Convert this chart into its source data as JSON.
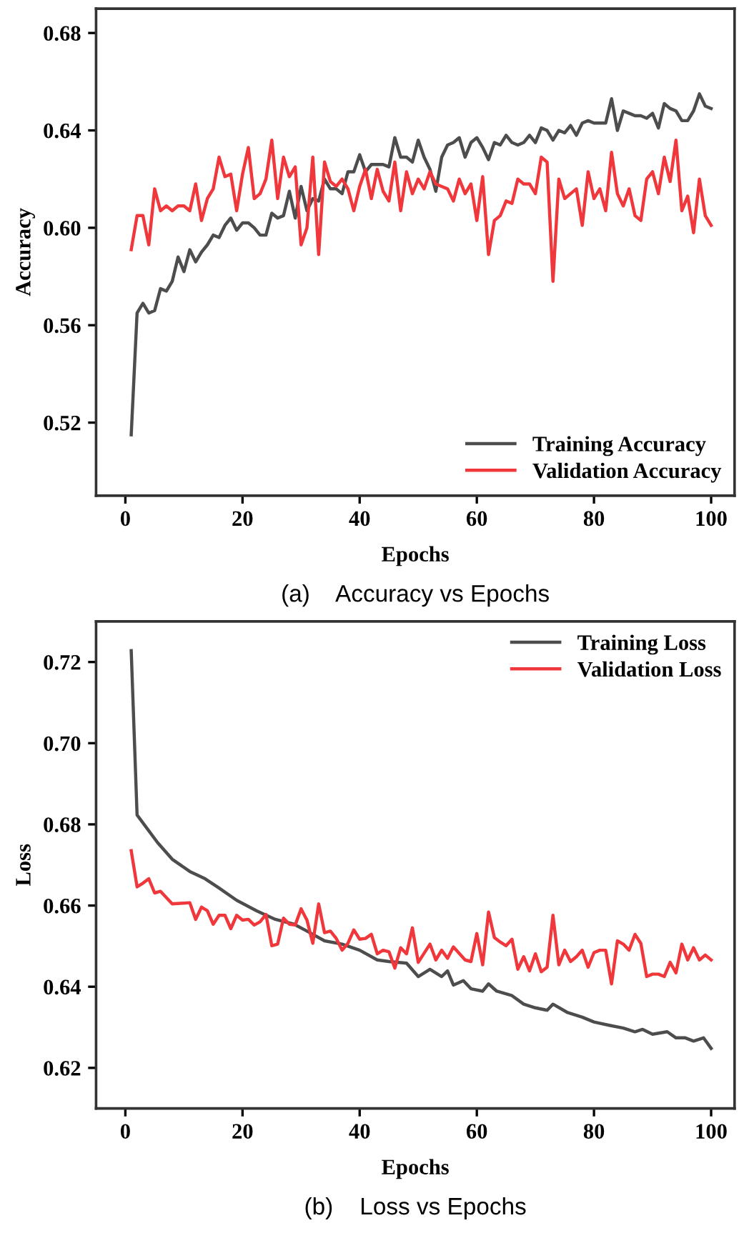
{
  "chart_data": [
    {
      "type": "line",
      "xlabel": "Epochs",
      "ylabel": "Accuracy",
      "annotations": [
        "(a)    Accuracy vs Epochs"
      ],
      "xlim": [
        -5,
        104
      ],
      "xticks": [
        0,
        20,
        40,
        60,
        80,
        100
      ],
      "ylim": [
        0.49,
        0.69
      ],
      "yticks": [
        {
          "value": 0.52,
          "label": "0.52"
        },
        {
          "value": 0.56,
          "label": "0.56"
        },
        {
          "value": 0.6,
          "label": "0.60"
        },
        {
          "value": 0.64,
          "label": "0.64"
        },
        {
          "value": 0.68,
          "label": "0.68"
        }
      ],
      "legend": "bottom right",
      "grid": false,
      "line_style": "solid",
      "marker": "none",
      "x": [
        1,
        2,
        3,
        4,
        5,
        6,
        7,
        8,
        9,
        10,
        11,
        12,
        13,
        14,
        15,
        16,
        17,
        18,
        19,
        20,
        21,
        22,
        23,
        24,
        25,
        26,
        27,
        28,
        29,
        30,
        31,
        32,
        33,
        34,
        35,
        36,
        37,
        38,
        39,
        40,
        41,
        42,
        43,
        44,
        45,
        46,
        47,
        48,
        49,
        50,
        51,
        52,
        53,
        54,
        55,
        56,
        57,
        58,
        59,
        60,
        61,
        62,
        63,
        64,
        65,
        66,
        67,
        68,
        69,
        70,
        71,
        72,
        73,
        74,
        75,
        76,
        77,
        78,
        79,
        80,
        81,
        82,
        83,
        84,
        85,
        86,
        87,
        88,
        89,
        90,
        91,
        92,
        93,
        94,
        95,
        96,
        97,
        98,
        99,
        100
      ],
      "series": [
        {
          "name": "Training Accuracy",
          "color": "#4d4d4d",
          "values": [
            0.515,
            0.565,
            0.569,
            0.565,
            0.566,
            0.575,
            0.574,
            0.578,
            0.588,
            0.582,
            0.591,
            0.586,
            0.59,
            0.593,
            0.597,
            0.596,
            0.601,
            0.604,
            0.599,
            0.602,
            0.602,
            0.6,
            0.597,
            0.597,
            0.606,
            0.604,
            0.605,
            0.615,
            0.604,
            0.617,
            0.607,
            0.612,
            0.611,
            0.62,
            0.616,
            0.616,
            0.614,
            0.623,
            0.623,
            0.63,
            0.623,
            0.626,
            0.626,
            0.626,
            0.625,
            0.637,
            0.629,
            0.629,
            0.627,
            0.636,
            0.629,
            0.624,
            0.615,
            0.629,
            0.634,
            0.635,
            0.637,
            0.629,
            0.635,
            0.637,
            0.633,
            0.628,
            0.635,
            0.634,
            0.638,
            0.635,
            0.634,
            0.635,
            0.638,
            0.635,
            0.641,
            0.64,
            0.636,
            0.64,
            0.639,
            0.642,
            0.638,
            0.643,
            0.644,
            0.643,
            0.643,
            0.643,
            0.653,
            0.64,
            0.648,
            0.647,
            0.646,
            0.646,
            0.645,
            0.647,
            0.641,
            0.651,
            0.649,
            0.648,
            0.644,
            0.644,
            0.648,
            0.655,
            0.65,
            0.649
          ]
        },
        {
          "name": "Validation Accuracy",
          "color": "#f0383c",
          "values": [
            0.591,
            0.605,
            0.605,
            0.593,
            0.616,
            0.607,
            0.609,
            0.607,
            0.609,
            0.609,
            0.607,
            0.618,
            0.603,
            0.612,
            0.616,
            0.629,
            0.621,
            0.622,
            0.607,
            0.622,
            0.633,
            0.612,
            0.614,
            0.62,
            0.636,
            0.612,
            0.629,
            0.621,
            0.625,
            0.593,
            0.6,
            0.629,
            0.589,
            0.627,
            0.619,
            0.617,
            0.62,
            0.616,
            0.607,
            0.617,
            0.624,
            0.612,
            0.624,
            0.615,
            0.611,
            0.627,
            0.607,
            0.623,
            0.614,
            0.62,
            0.616,
            0.623,
            0.618,
            0.617,
            0.616,
            0.611,
            0.62,
            0.614,
            0.618,
            0.603,
            0.621,
            0.589,
            0.603,
            0.605,
            0.611,
            0.61,
            0.62,
            0.618,
            0.618,
            0.614,
            0.629,
            0.627,
            0.578,
            0.62,
            0.612,
            0.614,
            0.616,
            0.601,
            0.623,
            0.612,
            0.616,
            0.607,
            0.631,
            0.614,
            0.609,
            0.616,
            0.605,
            0.603,
            0.62,
            0.623,
            0.614,
            0.629,
            0.619,
            0.636,
            0.607,
            0.613,
            0.598,
            0.62,
            0.605,
            0.601
          ]
        }
      ]
    },
    {
      "type": "line",
      "xlabel": "Epochs",
      "ylabel": "Loss",
      "annotations": [
        "(b)    Loss vs Epochs"
      ],
      "xlim": [
        -5,
        104
      ],
      "xticks": [
        0,
        20,
        40,
        60,
        80,
        100
      ],
      "ylim": [
        0.61,
        0.73
      ],
      "yticks": [
        {
          "value": 0.62,
          "label": "0.62"
        },
        {
          "value": 0.64,
          "label": "0.64"
        },
        {
          "value": 0.66,
          "label": "0.66"
        },
        {
          "value": 0.68,
          "label": "0.68"
        },
        {
          "value": 0.7,
          "label": "0.70"
        },
        {
          "value": 0.72,
          "label": "0.72"
        }
      ],
      "legend": "top right",
      "grid": false,
      "line_style": "solid",
      "marker": "none",
      "series": [
        {
          "name": "Training Loss",
          "color": "#4d4d4d",
          "x": [
            1,
            2,
            5.5,
            8,
            11,
            13.6,
            16,
            19,
            22.4,
            25.6,
            28.8,
            31,
            34,
            37,
            40,
            43,
            45,
            48,
            50,
            52,
            54,
            55,
            56,
            57.7,
            59,
            61,
            62,
            63.4,
            66,
            68,
            70,
            72,
            73,
            75.4,
            78,
            80,
            82.6,
            85,
            87,
            88.3,
            90,
            92.5,
            94,
            95.6,
            97,
            98.7,
            100
          ],
          "values": [
            0.7228,
            0.6823,
            0.6755,
            0.6714,
            0.6684,
            0.6666,
            0.6643,
            0.6613,
            0.6587,
            0.6566,
            0.6554,
            0.6537,
            0.6513,
            0.6505,
            0.649,
            0.6466,
            0.6462,
            0.6458,
            0.6425,
            0.6443,
            0.6425,
            0.6439,
            0.6404,
            0.6415,
            0.6395,
            0.6389,
            0.6407,
            0.6389,
            0.6378,
            0.6357,
            0.6348,
            0.6342,
            0.6357,
            0.6337,
            0.6325,
            0.6313,
            0.6305,
            0.6298,
            0.6289,
            0.6295,
            0.6283,
            0.6289,
            0.6274,
            0.6274,
            0.6266,
            0.6274,
            0.6248
          ]
        },
        {
          "name": "Validation Loss",
          "color": "#f0383c",
          "x": [
            1,
            2,
            3,
            4,
            5,
            6,
            8,
            11,
            12,
            13,
            14,
            15,
            16,
            17,
            18,
            19,
            20,
            21,
            22,
            23,
            24,
            25,
            26,
            27,
            28,
            29,
            30,
            31,
            32,
            33,
            34,
            35,
            36,
            37,
            38,
            39,
            40,
            41,
            42,
            43,
            44,
            45,
            46,
            47,
            48,
            49,
            50,
            52,
            53,
            54,
            55,
            56,
            58,
            59,
            60,
            61,
            62,
            63,
            64,
            65,
            66,
            67,
            68,
            69,
            70,
            71,
            72,
            73,
            74,
            75,
            76,
            77,
            78,
            79,
            80,
            81,
            82,
            83,
            84,
            85,
            86,
            87,
            88,
            89,
            90,
            91,
            92,
            93,
            94,
            95,
            96,
            97,
            98,
            99,
            100
          ],
          "values": [
            0.6735,
            0.6646,
            0.6655,
            0.6666,
            0.6631,
            0.6635,
            0.6604,
            0.6607,
            0.6566,
            0.6596,
            0.6587,
            0.6554,
            0.6576,
            0.6576,
            0.6543,
            0.6576,
            0.6564,
            0.6566,
            0.6552,
            0.656,
            0.6578,
            0.6501,
            0.6505,
            0.6569,
            0.6554,
            0.6552,
            0.6592,
            0.6564,
            0.6507,
            0.6604,
            0.6533,
            0.6537,
            0.6519,
            0.649,
            0.6507,
            0.654,
            0.6517,
            0.6519,
            0.6529,
            0.6481,
            0.649,
            0.6486,
            0.6446,
            0.6496,
            0.6481,
            0.6545,
            0.646,
            0.6505,
            0.6466,
            0.649,
            0.647,
            0.6498,
            0.6466,
            0.6462,
            0.6531,
            0.6454,
            0.6584,
            0.6521,
            0.651,
            0.6501,
            0.6517,
            0.6443,
            0.6474,
            0.6439,
            0.6481,
            0.6437,
            0.6448,
            0.6576,
            0.6454,
            0.649,
            0.6462,
            0.6474,
            0.649,
            0.6448,
            0.6484,
            0.649,
            0.649,
            0.6407,
            0.6513,
            0.6505,
            0.649,
            0.6529,
            0.6507,
            0.6425,
            0.6431,
            0.6431,
            0.6425,
            0.646,
            0.6434,
            0.6505,
            0.6466,
            0.6496,
            0.6466,
            0.6478,
            0.6466
          ]
        }
      ]
    }
  ]
}
